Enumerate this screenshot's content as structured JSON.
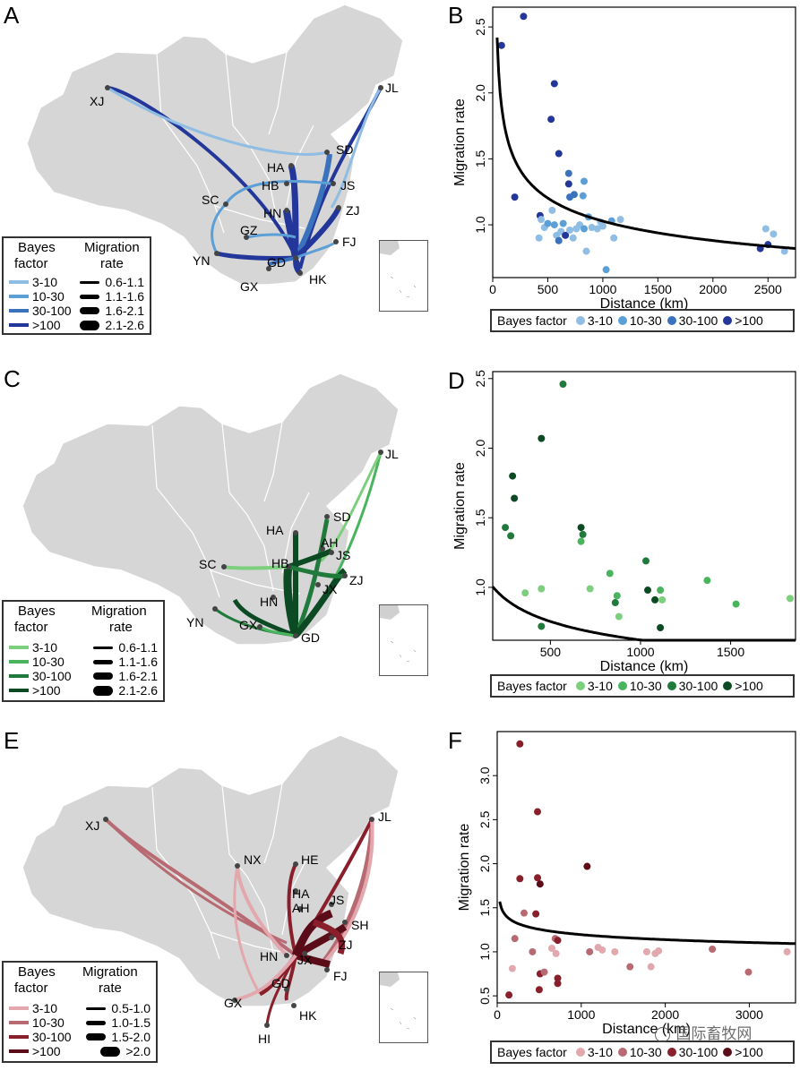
{
  "panels": {
    "a": "A",
    "b": "B",
    "c": "C",
    "d": "D",
    "e": "E",
    "f": "F"
  },
  "legend_text": {
    "bayes_factor": "Bayes factor",
    "bayes": "Bayes",
    "factor": "factor",
    "migration": "Migration",
    "rate": "rate"
  },
  "maps": [
    {
      "id": "A",
      "colors": [
        "#8fbde3",
        "#5b9fd6",
        "#3a72bd",
        "#23379a"
      ],
      "bf_classes": [
        "3-10",
        "10-30",
        "30-100",
        ">100"
      ],
      "rate_classes": [
        "0.6-1.1",
        "1.1-1.6",
        "1.6-2.1",
        "2.1-2.6"
      ],
      "labels": [
        "XJ",
        "JL",
        "SD",
        "HA",
        "HB",
        "JS",
        "SC",
        "HN",
        "ZJ",
        "GZ",
        "FJ",
        "YN",
        "GD",
        "GX",
        "HK"
      ]
    },
    {
      "id": "C",
      "colors": [
        "#7ccf7c",
        "#49b35e",
        "#1f7a3b",
        "#0b4a22"
      ],
      "bf_classes": [
        "3-10",
        "10-30",
        "30-100",
        ">100"
      ],
      "rate_classes": [
        "0.6-1.1",
        "1.1-1.6",
        "1.6-2.1",
        "2.1-2.6"
      ],
      "labels": [
        "JL",
        "SD",
        "HA",
        "AH",
        "JS",
        "SC",
        "HB",
        "ZJ",
        "JX",
        "HN",
        "YN",
        "GX",
        "GD"
      ]
    },
    {
      "id": "E",
      "colors": [
        "#e3a8ae",
        "#b86a72",
        "#8a1f2c",
        "#5a0d18"
      ],
      "bf_classes": [
        "3-10",
        "10-30",
        "30-100",
        ">100"
      ],
      "rate_classes": [
        "0.5-1.0",
        "1.0-1.5",
        "1.5-2.0",
        ">2.0"
      ],
      "labels": [
        "XJ",
        "JL",
        "NX",
        "HE",
        "HA",
        "AH",
        "JS",
        "SH",
        "ZJ",
        "HN",
        "JX",
        "FJ",
        "GD",
        "GX",
        "HK",
        "HI"
      ]
    }
  ],
  "chart_data": [
    {
      "id": "B",
      "type": "scatter",
      "xlabel": "Distance (km)",
      "ylabel": "Migration rate",
      "xlim": [
        0,
        2750
      ],
      "ylim": [
        0.6,
        2.65
      ],
      "xticks": [
        0,
        500,
        1000,
        1500,
        2000,
        2500
      ],
      "yticks": [
        1.0,
        1.5,
        2.0,
        2.5
      ],
      "colors": [
        "#8fbde3",
        "#5b9fd6",
        "#3a72bd",
        "#23379a"
      ],
      "bf_classes": [
        "3-10",
        "10-30",
        "30-100",
        ">100"
      ],
      "fit": {
        "a": 2.42,
        "x0": 20,
        "b": -0.22
      },
      "points": [
        {
          "x": 80,
          "y": 2.36,
          "c": 3
        },
        {
          "x": 280,
          "y": 2.58,
          "c": 3
        },
        {
          "x": 200,
          "y": 1.21,
          "c": 3
        },
        {
          "x": 560,
          "y": 2.07,
          "c": 3
        },
        {
          "x": 530,
          "y": 1.8,
          "c": 3
        },
        {
          "x": 600,
          "y": 1.54,
          "c": 3
        },
        {
          "x": 690,
          "y": 1.39,
          "c": 2
        },
        {
          "x": 690,
          "y": 1.31,
          "c": 3
        },
        {
          "x": 830,
          "y": 1.33,
          "c": 1
        },
        {
          "x": 740,
          "y": 1.23,
          "c": 2
        },
        {
          "x": 820,
          "y": 1.22,
          "c": 1
        },
        {
          "x": 700,
          "y": 1.21,
          "c": 2
        },
        {
          "x": 430,
          "y": 1.07,
          "c": 3
        },
        {
          "x": 440,
          "y": 1.04,
          "c": 0
        },
        {
          "x": 470,
          "y": 0.98,
          "c": 0
        },
        {
          "x": 500,
          "y": 1.01,
          "c": 1
        },
        {
          "x": 540,
          "y": 1.11,
          "c": 0
        },
        {
          "x": 560,
          "y": 1.0,
          "c": 1
        },
        {
          "x": 580,
          "y": 0.92,
          "c": 0
        },
        {
          "x": 600,
          "y": 0.88,
          "c": 2
        },
        {
          "x": 620,
          "y": 0.95,
          "c": 0
        },
        {
          "x": 640,
          "y": 1.01,
          "c": 1
        },
        {
          "x": 660,
          "y": 0.92,
          "c": 3
        },
        {
          "x": 700,
          "y": 0.96,
          "c": 0
        },
        {
          "x": 730,
          "y": 0.9,
          "c": 0
        },
        {
          "x": 760,
          "y": 0.97,
          "c": 0
        },
        {
          "x": 790,
          "y": 1.0,
          "c": 0
        },
        {
          "x": 830,
          "y": 0.97,
          "c": 1
        },
        {
          "x": 850,
          "y": 0.8,
          "c": 0
        },
        {
          "x": 870,
          "y": 1.06,
          "c": 1
        },
        {
          "x": 900,
          "y": 0.98,
          "c": 0
        },
        {
          "x": 950,
          "y": 0.97,
          "c": 0
        },
        {
          "x": 980,
          "y": 1.02,
          "c": 0
        },
        {
          "x": 1000,
          "y": 0.99,
          "c": 0
        },
        {
          "x": 1030,
          "y": 0.66,
          "c": 1
        },
        {
          "x": 1080,
          "y": 1.03,
          "c": 1
        },
        {
          "x": 1100,
          "y": 0.9,
          "c": 0
        },
        {
          "x": 1160,
          "y": 1.04,
          "c": 0
        },
        {
          "x": 420,
          "y": 0.9,
          "c": 0
        },
        {
          "x": 2430,
          "y": 0.82,
          "c": 3
        },
        {
          "x": 2480,
          "y": 0.97,
          "c": 0
        },
        {
          "x": 2500,
          "y": 0.85,
          "c": 3
        },
        {
          "x": 2550,
          "y": 0.93,
          "c": 0
        },
        {
          "x": 2650,
          "y": 0.8,
          "c": 0
        }
      ]
    },
    {
      "id": "D",
      "type": "scatter",
      "xlabel": "Distance (km)",
      "ylabel": "Migration rate",
      "xlim": [
        180,
        1860
      ],
      "ylim": [
        0.62,
        2.55
      ],
      "xticks": [
        500,
        1000,
        1500
      ],
      "yticks": [
        1.0,
        1.5,
        2.0,
        2.5
      ],
      "colors": [
        "#7ccf7c",
        "#49b35e",
        "#1f7a3b",
        "#0b4a22"
      ],
      "bf_classes": [
        "3-10",
        "10-30",
        "30-100",
        ">100"
      ],
      "fit": {
        "a": 4.3,
        "x0": 0,
        "b": -0.28
      },
      "points": [
        {
          "x": 570,
          "y": 2.46,
          "c": 2
        },
        {
          "x": 450,
          "y": 2.07,
          "c": 3
        },
        {
          "x": 290,
          "y": 1.8,
          "c": 3
        },
        {
          "x": 300,
          "y": 1.64,
          "c": 3
        },
        {
          "x": 250,
          "y": 1.43,
          "c": 2
        },
        {
          "x": 280,
          "y": 1.37,
          "c": 2
        },
        {
          "x": 670,
          "y": 1.43,
          "c": 3
        },
        {
          "x": 680,
          "y": 1.38,
          "c": 2
        },
        {
          "x": 670,
          "y": 1.33,
          "c": 1
        },
        {
          "x": 1030,
          "y": 1.19,
          "c": 2
        },
        {
          "x": 830,
          "y": 1.1,
          "c": 1
        },
        {
          "x": 1370,
          "y": 1.05,
          "c": 1
        },
        {
          "x": 360,
          "y": 0.96,
          "c": 0
        },
        {
          "x": 450,
          "y": 0.99,
          "c": 0
        },
        {
          "x": 720,
          "y": 0.99,
          "c": 0
        },
        {
          "x": 870,
          "y": 0.94,
          "c": 1
        },
        {
          "x": 860,
          "y": 0.89,
          "c": 2
        },
        {
          "x": 880,
          "y": 0.79,
          "c": 0
        },
        {
          "x": 1040,
          "y": 0.98,
          "c": 3
        },
        {
          "x": 1080,
          "y": 0.91,
          "c": 3
        },
        {
          "x": 1110,
          "y": 0.98,
          "c": 1
        },
        {
          "x": 1120,
          "y": 0.91,
          "c": 0
        },
        {
          "x": 1110,
          "y": 0.71,
          "c": 3
        },
        {
          "x": 450,
          "y": 0.72,
          "c": 2
        },
        {
          "x": 1530,
          "y": 0.88,
          "c": 1
        },
        {
          "x": 1830,
          "y": 0.92,
          "c": 0
        }
      ]
    },
    {
      "id": "F",
      "type": "scatter",
      "xlabel": "Distance (km)",
      "ylabel": "Migration rate",
      "xlim": [
        0,
        3550
      ],
      "ylim": [
        0.42,
        3.5
      ],
      "xticks": [
        0,
        1000,
        2000,
        3000
      ],
      "yticks": [
        0.5,
        1.0,
        1.5,
        2.0,
        2.5,
        3.0
      ],
      "colors": [
        "#e3a8ae",
        "#b86a72",
        "#8a1f2c",
        "#5a0d18"
      ],
      "bf_classes": [
        "3-10",
        "10-30",
        "30-100",
        ">100"
      ],
      "fit": {
        "a": 1.57,
        "x0": 10,
        "b": -0.07
      },
      "points": [
        {
          "x": 270,
          "y": 3.36,
          "c": 2
        },
        {
          "x": 480,
          "y": 2.59,
          "c": 2
        },
        {
          "x": 1070,
          "y": 1.97,
          "c": 3
        },
        {
          "x": 270,
          "y": 1.83,
          "c": 2
        },
        {
          "x": 480,
          "y": 1.84,
          "c": 2
        },
        {
          "x": 510,
          "y": 1.77,
          "c": 3
        },
        {
          "x": 320,
          "y": 1.44,
          "c": 1
        },
        {
          "x": 460,
          "y": 1.43,
          "c": 2
        },
        {
          "x": 210,
          "y": 1.15,
          "c": 1
        },
        {
          "x": 690,
          "y": 1.15,
          "c": 1
        },
        {
          "x": 720,
          "y": 1.13,
          "c": 2
        },
        {
          "x": 420,
          "y": 1.0,
          "c": 1
        },
        {
          "x": 650,
          "y": 1.04,
          "c": 0
        },
        {
          "x": 700,
          "y": 0.98,
          "c": 0
        },
        {
          "x": 1200,
          "y": 1.05,
          "c": 0
        },
        {
          "x": 1250,
          "y": 1.02,
          "c": 0
        },
        {
          "x": 1100,
          "y": 1.0,
          "c": 1
        },
        {
          "x": 1400,
          "y": 1.0,
          "c": 0
        },
        {
          "x": 1780,
          "y": 1.0,
          "c": 0
        },
        {
          "x": 1920,
          "y": 1.01,
          "c": 0
        },
        {
          "x": 1880,
          "y": 0.98,
          "c": 0
        },
        {
          "x": 2560,
          "y": 1.03,
          "c": 1
        },
        {
          "x": 3450,
          "y": 1.0,
          "c": 0
        },
        {
          "x": 180,
          "y": 0.81,
          "c": 0
        },
        {
          "x": 510,
          "y": 0.75,
          "c": 2
        },
        {
          "x": 560,
          "y": 0.77,
          "c": 1
        },
        {
          "x": 720,
          "y": 0.7,
          "c": 2
        },
        {
          "x": 720,
          "y": 0.64,
          "c": 2
        },
        {
          "x": 500,
          "y": 0.57,
          "c": 2
        },
        {
          "x": 140,
          "y": 0.51,
          "c": 2
        },
        {
          "x": 1580,
          "y": 0.83,
          "c": 1
        },
        {
          "x": 1830,
          "y": 0.83,
          "c": 0
        },
        {
          "x": 2990,
          "y": 0.77,
          "c": 1
        }
      ]
    }
  ],
  "watermark": "国际畜牧网"
}
